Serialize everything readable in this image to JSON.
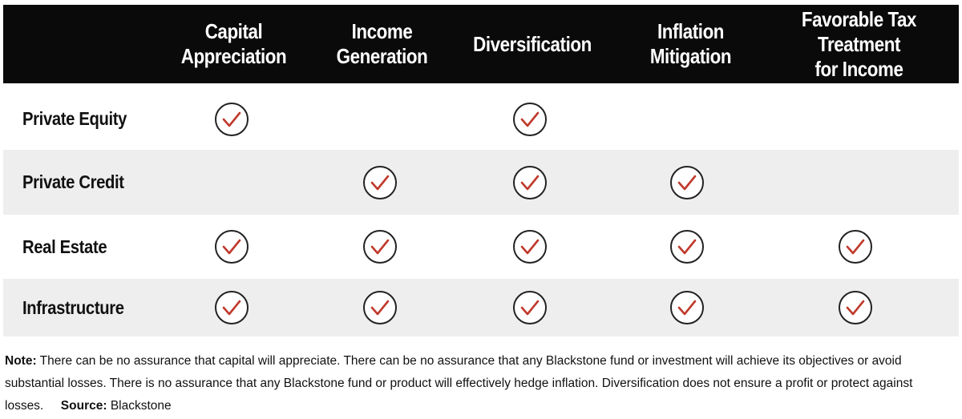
{
  "columns": [
    "Capital\nAppreciation",
    "Income\nGeneration",
    "Diversification",
    "Inflation\nMitigation",
    "Favorable Tax Treatment\nfor Income"
  ],
  "rows": [
    {
      "label": "Private Equity",
      "checks": [
        true,
        false,
        true,
        false,
        false
      ]
    },
    {
      "label": "Private Credit",
      "checks": [
        false,
        true,
        true,
        true,
        false
      ]
    },
    {
      "label": "Real Estate",
      "checks": [
        true,
        true,
        true,
        true,
        true
      ]
    },
    {
      "label": "Infrastructure",
      "checks": [
        true,
        true,
        true,
        true,
        true
      ]
    }
  ],
  "footnote": {
    "note_label": "Note:",
    "note_text": "There can be no assurance that capital will appreciate. There can be no assurance that any Blackstone fund or investment will achieve its objectives or avoid substantial losses. There is no assurance that any Blackstone fund or product will effectively hedge inflation. Diversification does not ensure a profit or protect against losses.",
    "source_label": "Source:",
    "source_text": "Blackstone"
  },
  "colors": {
    "header_bg": "#0a0a0a",
    "check_mark": "#c0392b",
    "circle": "#222222",
    "shaded_row": "#eeeeee"
  },
  "icons": {
    "check": "check-circle-icon"
  }
}
